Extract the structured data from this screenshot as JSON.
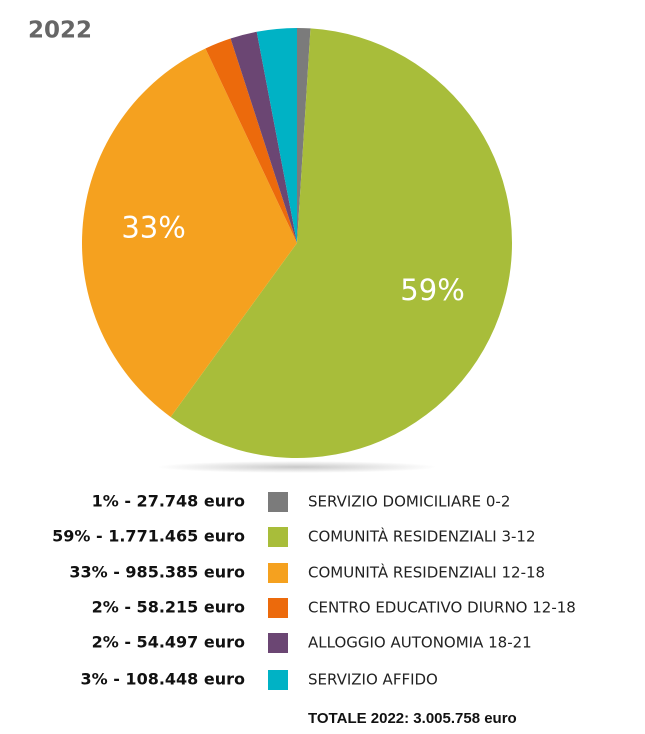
{
  "chart_data": {
    "type": "pie",
    "title": "2022",
    "categories": [
      "SERVIZIO DOMICILIARE 0-2",
      "COMUNITÀ RESIDENZIALI 3-12",
      "COMUNITÀ RESIDENZIALI 12-18",
      "CENTRO EDUCATIVO DIURNO 12-18",
      "ALLOGGIO AUTONOMIA 18-21",
      "SERVIZIO AFFIDO"
    ],
    "values": [
      1,
      59,
      33,
      2,
      2,
      3
    ],
    "value_labels": [
      "1% - 27.748 euro",
      "59% - 1.771.465 euro",
      "33% - 985.385 euro",
      "2% - 58.215 euro",
      "2% - 54.497 euro",
      "3% - 108.448 euro"
    ],
    "pie_labels": [
      null,
      "59%",
      "33%",
      null,
      null,
      null
    ],
    "colors": [
      "#7b7b7b",
      "#a8bd3a",
      "#f5a11f",
      "#ec6a0c",
      "#6b4673",
      "#00b2c5"
    ],
    "total": "TOTALE 2022: 3.005.758 euro"
  }
}
